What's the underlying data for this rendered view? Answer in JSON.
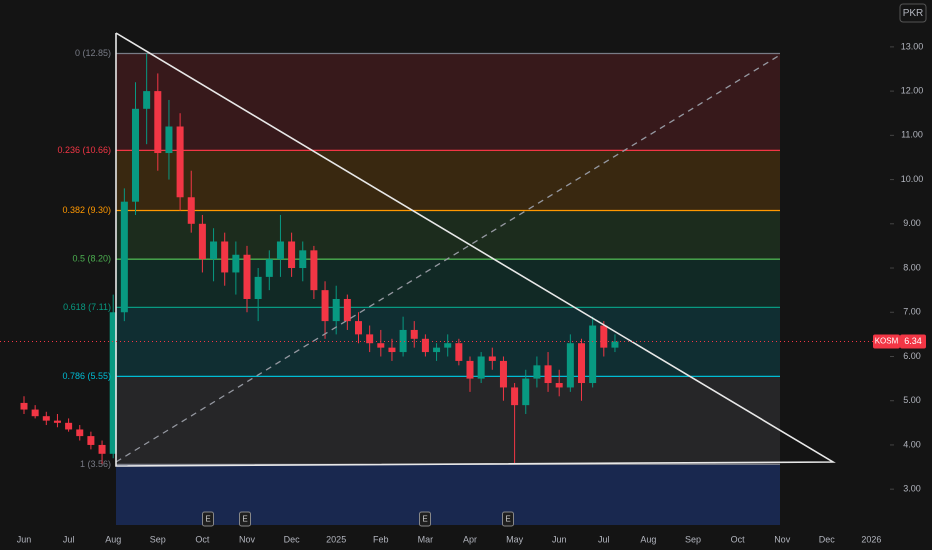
{
  "chart_data": {
    "type": "candlestick",
    "symbol": "KOSM",
    "currency": "PKR",
    "last": 6.34,
    "last_label": "6.34",
    "last_color": "#f23645",
    "up_color": "#089981",
    "down_color": "#f23645",
    "categories": [
      "Jun",
      null,
      null,
      null,
      "Jul",
      null,
      null,
      null,
      "Aug",
      null,
      null,
      null,
      "Sep",
      null,
      null,
      null,
      "Oct",
      null,
      null,
      null,
      "Nov",
      null,
      null,
      null,
      "Dec",
      null,
      null,
      null,
      "2025",
      null,
      null,
      null,
      "Feb",
      null,
      null,
      null,
      "Mar",
      null,
      null,
      null,
      "Apr",
      null,
      null,
      null,
      "May",
      null,
      null,
      null,
      "Jun",
      null,
      null,
      null,
      "Jul",
      null,
      null,
      null,
      "Aug",
      null,
      null,
      null,
      "Sep",
      null,
      null,
      null,
      "Oct",
      null,
      null,
      null,
      "Nov",
      null,
      null,
      null,
      "Dec",
      null,
      null,
      null,
      "2026",
      null,
      null,
      null
    ],
    "open": [
      4.95,
      4.8,
      4.65,
      4.55,
      4.5,
      4.35,
      4.2,
      4.0,
      3.8,
      7.0,
      9.5,
      11.6,
      12.0,
      10.6,
      11.2,
      9.6,
      9.0,
      8.2,
      8.6,
      7.9,
      8.3,
      7.3,
      7.8,
      8.2,
      8.6,
      8.0,
      8.4,
      7.5,
      6.8,
      7.3,
      6.8,
      6.5,
      6.3,
      6.2,
      6.1,
      6.6,
      6.4,
      6.1,
      6.2,
      6.3,
      5.9,
      5.5,
      6.0,
      5.9,
      5.3,
      4.9,
      5.5,
      5.8,
      5.4,
      5.3,
      6.3,
      5.4,
      6.7,
      6.2,
      null,
      null,
      null,
      null,
      null,
      null,
      null,
      null,
      null,
      null,
      null,
      null,
      null,
      null,
      null,
      null,
      null,
      null,
      null,
      null,
      null,
      null,
      null,
      null,
      null,
      null
    ],
    "high": [
      5.1,
      4.9,
      4.75,
      4.7,
      4.6,
      4.45,
      4.3,
      4.1,
      7.4,
      9.8,
      12.2,
      12.85,
      12.4,
      11.8,
      11.5,
      10.2,
      9.2,
      8.9,
      8.8,
      8.6,
      8.5,
      8.0,
      8.4,
      9.2,
      8.8,
      8.6,
      8.5,
      7.7,
      7.6,
      7.4,
      7.0,
      6.7,
      6.6,
      6.4,
      6.9,
      6.8,
      6.5,
      6.3,
      6.5,
      6.4,
      6.0,
      6.1,
      6.2,
      6.0,
      5.4,
      5.7,
      6.0,
      6.1,
      5.7,
      6.5,
      6.4,
      6.9,
      6.8,
      6.5,
      null,
      null,
      null,
      null,
      null,
      null,
      null,
      null,
      null,
      null,
      null,
      null,
      null,
      null,
      null,
      null,
      null,
      null,
      null,
      null,
      null,
      null,
      null,
      null,
      null,
      null
    ],
    "low": [
      4.7,
      4.6,
      4.45,
      4.4,
      4.3,
      4.1,
      3.9,
      3.56,
      3.7,
      6.8,
      9.2,
      10.8,
      10.2,
      10.0,
      9.3,
      8.8,
      7.9,
      7.7,
      7.6,
      7.4,
      7.0,
      6.8,
      7.5,
      7.8,
      7.8,
      7.7,
      7.3,
      6.4,
      6.5,
      6.6,
      6.3,
      6.1,
      6.0,
      5.9,
      6.0,
      6.2,
      6.0,
      5.9,
      6.0,
      5.8,
      5.2,
      5.4,
      5.7,
      5.0,
      3.56,
      4.7,
      5.3,
      5.2,
      5.1,
      5.2,
      5.0,
      5.3,
      6.0,
      6.1,
      null,
      null,
      null,
      null,
      null,
      null,
      null,
      null,
      null,
      null,
      null,
      null,
      null,
      null,
      null,
      null,
      null,
      null,
      null,
      null,
      null,
      null,
      null,
      null,
      null,
      null
    ],
    "close": [
      4.8,
      4.65,
      4.55,
      4.5,
      4.35,
      4.2,
      4.0,
      3.8,
      7.0,
      9.5,
      11.6,
      12.0,
      10.6,
      11.2,
      9.6,
      9.0,
      8.2,
      8.6,
      7.9,
      8.3,
      7.3,
      7.8,
      8.2,
      8.6,
      8.0,
      8.4,
      7.5,
      6.8,
      7.3,
      6.8,
      6.5,
      6.3,
      6.2,
      6.1,
      6.6,
      6.4,
      6.1,
      6.2,
      6.3,
      5.9,
      5.5,
      6.0,
      5.9,
      5.3,
      4.9,
      5.5,
      5.8,
      5.4,
      5.3,
      6.3,
      5.4,
      6.7,
      6.2,
      6.34,
      null,
      null,
      null,
      null,
      null,
      null,
      null,
      null,
      null,
      null,
      null,
      null,
      null,
      null,
      null,
      null,
      null,
      null,
      null,
      null,
      null,
      null,
      null,
      null,
      null,
      null
    ],
    "fib_levels": [
      {
        "label": "0 (12.85)",
        "value": 12.85,
        "color": "#787b86",
        "fill": "rgba(242,54,69,0.16)"
      },
      {
        "label": "0.236 (10.66)",
        "value": 10.66,
        "color": "#f23645",
        "fill": "rgba(255,152,0,0.16)"
      },
      {
        "label": "0.382 (9.30)",
        "value": 9.3,
        "color": "#ff9800",
        "fill": "rgba(76,175,80,0.16)"
      },
      {
        "label": "0.5 (8.20)",
        "value": 8.2,
        "color": "#4caf50",
        "fill": "rgba(8,153,129,0.16)"
      },
      {
        "label": "0.618 (7.11)",
        "value": 7.11,
        "color": "#089981",
        "fill": "rgba(0,188,212,0.16)"
      },
      {
        "label": "0.786 (5.55)",
        "value": 5.55,
        "color": "#00bcd4",
        "fill": "rgba(120,123,134,0.18)"
      },
      {
        "label": "1 (3.56)",
        "value": 3.56,
        "color": "#787b86",
        "fill": "rgba(41,98,255,0.25)"
      }
    ],
    "earnings_markers": [
      "E",
      "E",
      "E",
      "E"
    ],
    "ylim": [
      2.19,
      14.06
    ],
    "yticks": [
      {
        "value": 3,
        "label": "3.00"
      },
      {
        "value": 4,
        "label": "4.00"
      },
      {
        "value": 5,
        "label": "5.00"
      },
      {
        "value": 6,
        "label": "6.00"
      },
      {
        "value": 7,
        "label": "7.00"
      },
      {
        "value": 8,
        "label": "8.00"
      },
      {
        "value": 9,
        "label": "9.00"
      },
      {
        "value": 10,
        "label": "10.00"
      },
      {
        "value": 11,
        "label": "11.00"
      },
      {
        "value": 12,
        "label": "12.00"
      },
      {
        "value": 13,
        "label": "13.00"
      }
    ]
  }
}
